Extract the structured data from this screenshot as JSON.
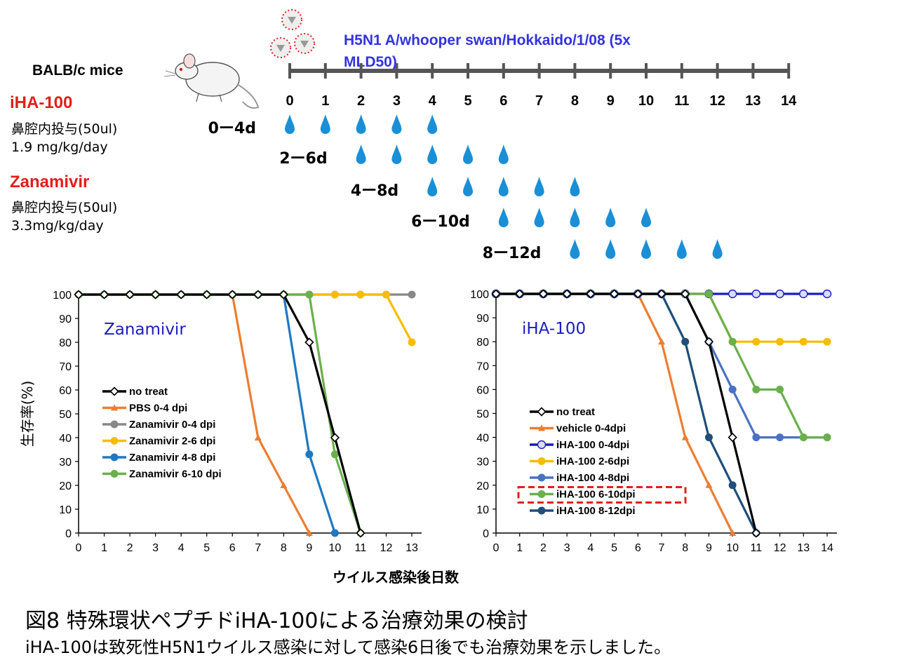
{
  "header": {
    "mice_label": "BALB/c mice",
    "virus_label_line1": "H5N1 A/whooper swan/Hokkaido/1/08 (5x",
    "virus_label_line2": "MLD50)",
    "timeline_days": [
      "0",
      "1",
      "2",
      "3",
      "4",
      "5",
      "6",
      "7",
      "8",
      "9",
      "10",
      "11",
      "12",
      "13",
      "14"
    ]
  },
  "treatments": {
    "iha_name": "iHA-100",
    "iha_route": "鼻腔内投与(50ul)",
    "iha_dose": "1.9 mg/kg/day",
    "zan_name": "Zanamivir",
    "zan_route": "鼻腔内投与(50ul)",
    "zan_dose": "3.3mg/kg/day"
  },
  "schedules": [
    {
      "label": "0ー4d",
      "days": [
        0,
        1,
        2,
        3,
        4
      ]
    },
    {
      "label": "2ー6d",
      "days": [
        2,
        3,
        4,
        5,
        6
      ]
    },
    {
      "label": "4ー8d",
      "days": [
        4,
        5,
        6,
        7,
        8
      ]
    },
    {
      "label": "6ー10d",
      "days": [
        6,
        7,
        8,
        9,
        10
      ]
    },
    {
      "label": "8ー12d",
      "days": [
        8,
        9,
        10,
        11,
        12
      ]
    }
  ],
  "colors": {
    "blue_text": "#3333dd",
    "red_text": "#e0201a",
    "drop": "#1a8fd6",
    "black": "#000000",
    "orange": "#ed7d31",
    "gray": "#888888",
    "yellow": "#f5bd00",
    "blue": "#1f78c1",
    "green": "#6ab04c",
    "navy": "#1c1cc0",
    "steel_blue": "#4a72c4",
    "dark_teal": "#1f4e79"
  },
  "shared_xlabel": "ウイルス感染後日数",
  "shared_ylabel": "生存率(%)",
  "caption": {
    "title": "図8 特殊環状ペプチドiHA-100による治療効果の検討",
    "subtitle": "iHA-100は致死性H5N1ウイルス感染に対して感染6日後でも治療効果を示しました。"
  },
  "chart_data": [
    {
      "type": "line",
      "title": "Zanamivir",
      "xlabel": "ウイルス感染後日数",
      "ylabel": "生存率(%)",
      "xlim": [
        0,
        13
      ],
      "ylim": [
        0,
        100
      ],
      "x_ticks": [
        0,
        1,
        2,
        3,
        4,
        5,
        6,
        7,
        8,
        9,
        10,
        11,
        12,
        13
      ],
      "y_ticks": [
        0,
        10,
        20,
        30,
        40,
        50,
        60,
        70,
        80,
        90,
        100
      ],
      "legend_position": "bottom-left",
      "series": [
        {
          "name": "no treat",
          "color": "#000000",
          "marker": "diamond-open",
          "points": [
            [
              0,
              100
            ],
            [
              1,
              100
            ],
            [
              2,
              100
            ],
            [
              3,
              100
            ],
            [
              4,
              100
            ],
            [
              5,
              100
            ],
            [
              6,
              100
            ],
            [
              7,
              100
            ],
            [
              8,
              100
            ],
            [
              9,
              80
            ],
            [
              10,
              40
            ],
            [
              11,
              0
            ]
          ]
        },
        {
          "name": "PBS 0-4 dpi",
          "color": "#ed7d31",
          "marker": "triangle",
          "points": [
            [
              0,
              100
            ],
            [
              1,
              100
            ],
            [
              2,
              100
            ],
            [
              3,
              100
            ],
            [
              4,
              100
            ],
            [
              5,
              100
            ],
            [
              6,
              100
            ],
            [
              7,
              40
            ],
            [
              8,
              20
            ],
            [
              9,
              0
            ]
          ]
        },
        {
          "name": "Zanamivir 0-4 dpi",
          "color": "#888888",
          "marker": "circle",
          "points": [
            [
              0,
              100
            ],
            [
              1,
              100
            ],
            [
              2,
              100
            ],
            [
              3,
              100
            ],
            [
              4,
              100
            ],
            [
              5,
              100
            ],
            [
              6,
              100
            ],
            [
              7,
              100
            ],
            [
              8,
              100
            ],
            [
              9,
              100
            ],
            [
              10,
              100
            ],
            [
              11,
              100
            ],
            [
              12,
              100
            ],
            [
              13,
              100
            ]
          ]
        },
        {
          "name": "Zanamivir 2-6 dpi",
          "color": "#f5bd00",
          "marker": "circle",
          "points": [
            [
              0,
              100
            ],
            [
              1,
              100
            ],
            [
              2,
              100
            ],
            [
              3,
              100
            ],
            [
              4,
              100
            ],
            [
              5,
              100
            ],
            [
              6,
              100
            ],
            [
              7,
              100
            ],
            [
              8,
              100
            ],
            [
              9,
              100
            ],
            [
              10,
              100
            ],
            [
              11,
              100
            ],
            [
              12,
              100
            ],
            [
              13,
              80
            ]
          ]
        },
        {
          "name": "Zanamivir 4-8 dpi",
          "color": "#1f78c1",
          "marker": "circle",
          "points": [
            [
              0,
              100
            ],
            [
              1,
              100
            ],
            [
              2,
              100
            ],
            [
              3,
              100
            ],
            [
              4,
              100
            ],
            [
              5,
              100
            ],
            [
              6,
              100
            ],
            [
              7,
              100
            ],
            [
              8,
              100
            ],
            [
              9,
              33
            ],
            [
              10,
              0
            ]
          ]
        },
        {
          "name": "Zanamivir 6-10 dpi",
          "color": "#6ab04c",
          "marker": "circle",
          "points": [
            [
              0,
              100
            ],
            [
              1,
              100
            ],
            [
              2,
              100
            ],
            [
              3,
              100
            ],
            [
              4,
              100
            ],
            [
              5,
              100
            ],
            [
              6,
              100
            ],
            [
              7,
              100
            ],
            [
              8,
              100
            ],
            [
              9,
              100
            ],
            [
              10,
              33
            ],
            [
              11,
              0
            ]
          ]
        }
      ]
    },
    {
      "type": "line",
      "title": "iHA-100",
      "xlabel": "ウイルス感染後日数",
      "ylabel": "生存率(%)",
      "xlim": [
        0,
        14
      ],
      "ylim": [
        0,
        100
      ],
      "x_ticks": [
        0,
        1,
        2,
        3,
        4,
        5,
        6,
        7,
        8,
        9,
        10,
        11,
        12,
        13,
        14
      ],
      "y_ticks": [
        0,
        10,
        20,
        30,
        40,
        50,
        60,
        70,
        80,
        90,
        100
      ],
      "legend_position": "bottom-left",
      "highlighted_series": "iHA-100 6-10dpi",
      "series": [
        {
          "name": "no treat",
          "color": "#000000",
          "marker": "diamond-open",
          "points": [
            [
              0,
              100
            ],
            [
              1,
              100
            ],
            [
              2,
              100
            ],
            [
              3,
              100
            ],
            [
              4,
              100
            ],
            [
              5,
              100
            ],
            [
              6,
              100
            ],
            [
              7,
              100
            ],
            [
              8,
              100
            ],
            [
              9,
              80
            ],
            [
              10,
              40
            ],
            [
              11,
              0
            ]
          ]
        },
        {
          "name": "vehicle 0-4dpi",
          "color": "#ed7d31",
          "marker": "triangle",
          "points": [
            [
              0,
              100
            ],
            [
              1,
              100
            ],
            [
              2,
              100
            ],
            [
              3,
              100
            ],
            [
              4,
              100
            ],
            [
              5,
              100
            ],
            [
              6,
              100
            ],
            [
              7,
              80
            ],
            [
              8,
              40
            ],
            [
              9,
              20
            ],
            [
              10,
              0
            ]
          ]
        },
        {
          "name": "iHA-100 0-4dpi",
          "color": "#1c1cc0",
          "marker": "circle-open",
          "points": [
            [
              0,
              100
            ],
            [
              1,
              100
            ],
            [
              2,
              100
            ],
            [
              3,
              100
            ],
            [
              4,
              100
            ],
            [
              5,
              100
            ],
            [
              6,
              100
            ],
            [
              7,
              100
            ],
            [
              8,
              100
            ],
            [
              9,
              100
            ],
            [
              10,
              100
            ],
            [
              11,
              100
            ],
            [
              12,
              100
            ],
            [
              13,
              100
            ],
            [
              14,
              100
            ]
          ]
        },
        {
          "name": "iHA-100  2-6dpi",
          "color": "#f5bd00",
          "marker": "circle",
          "points": [
            [
              0,
              100
            ],
            [
              1,
              100
            ],
            [
              2,
              100
            ],
            [
              3,
              100
            ],
            [
              4,
              100
            ],
            [
              5,
              100
            ],
            [
              6,
              100
            ],
            [
              7,
              100
            ],
            [
              8,
              100
            ],
            [
              9,
              100
            ],
            [
              10,
              80
            ],
            [
              11,
              80
            ],
            [
              12,
              80
            ],
            [
              13,
              80
            ],
            [
              14,
              80
            ]
          ]
        },
        {
          "name": "iHA-100 4-8dpi",
          "color": "#4a72c4",
          "marker": "circle",
          "points": [
            [
              0,
              100
            ],
            [
              1,
              100
            ],
            [
              2,
              100
            ],
            [
              3,
              100
            ],
            [
              4,
              100
            ],
            [
              5,
              100
            ],
            [
              6,
              100
            ],
            [
              7,
              100
            ],
            [
              8,
              100
            ],
            [
              9,
              80
            ],
            [
              10,
              60
            ],
            [
              11,
              40
            ],
            [
              12,
              40
            ],
            [
              13,
              40
            ],
            [
              14,
              40
            ]
          ]
        },
        {
          "name": "iHA-100 6-10dpi",
          "color": "#6ab04c",
          "marker": "circle",
          "points": [
            [
              0,
              100
            ],
            [
              1,
              100
            ],
            [
              2,
              100
            ],
            [
              3,
              100
            ],
            [
              4,
              100
            ],
            [
              5,
              100
            ],
            [
              6,
              100
            ],
            [
              7,
              100
            ],
            [
              8,
              100
            ],
            [
              9,
              100
            ],
            [
              10,
              80
            ],
            [
              11,
              60
            ],
            [
              12,
              60
            ],
            [
              13,
              40
            ],
            [
              14,
              40
            ]
          ]
        },
        {
          "name": "iHA-100 8-12dpi",
          "color": "#1f4e79",
          "marker": "circle",
          "points": [
            [
              0,
              100
            ],
            [
              1,
              100
            ],
            [
              2,
              100
            ],
            [
              3,
              100
            ],
            [
              4,
              100
            ],
            [
              5,
              100
            ],
            [
              6,
              100
            ],
            [
              7,
              100
            ],
            [
              8,
              80
            ],
            [
              9,
              40
            ],
            [
              10,
              20
            ],
            [
              11,
              0
            ]
          ]
        }
      ]
    }
  ]
}
